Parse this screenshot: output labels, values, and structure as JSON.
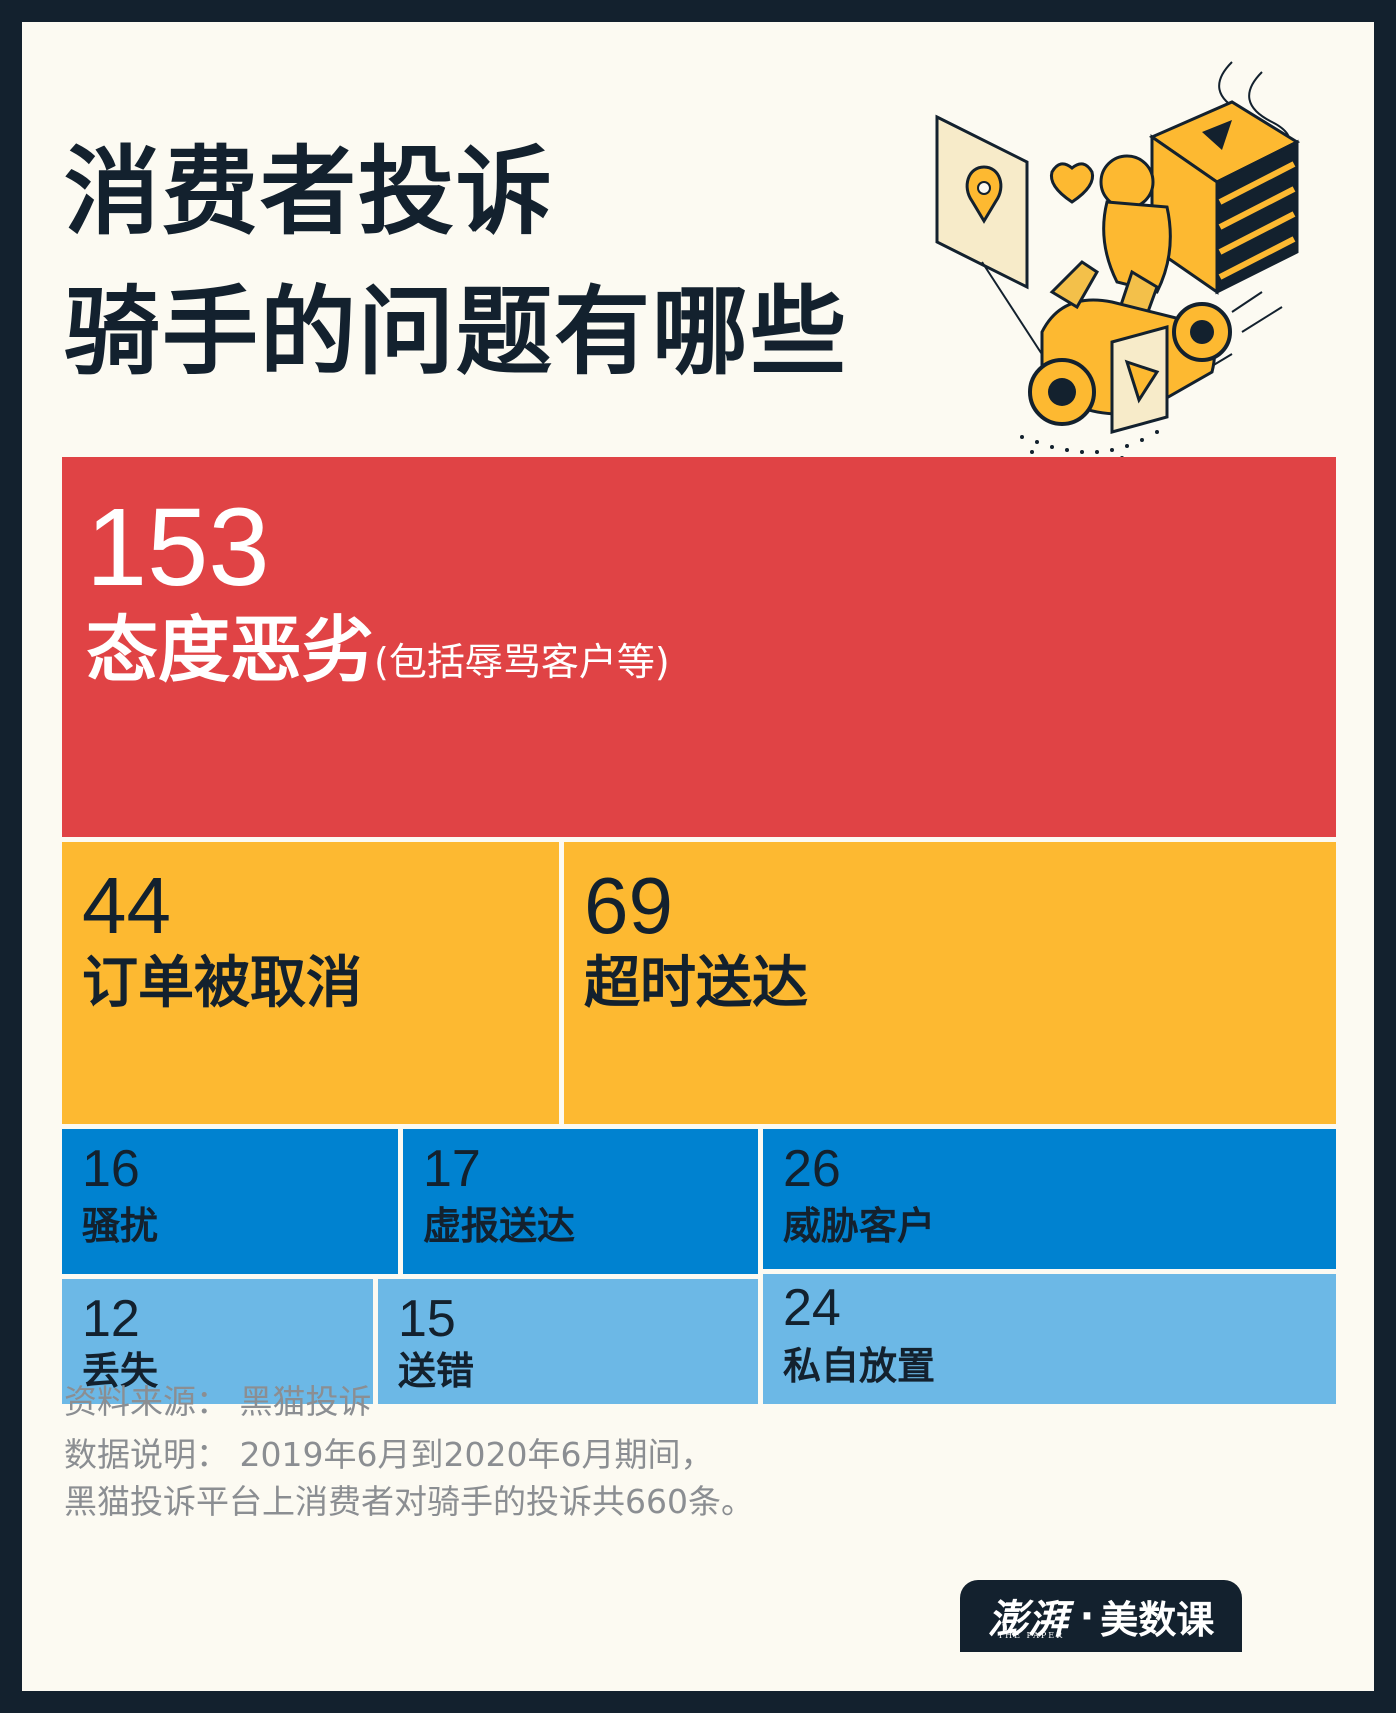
{
  "title": {
    "line1": "消费者投诉",
    "line2": "骑手的问题有哪些"
  },
  "chart_data": {
    "type": "treemap",
    "items": [
      {
        "label": "态度恶劣",
        "sublabel": "(包括辱骂客户等)",
        "value": 153,
        "color": "#e04345"
      },
      {
        "label": "订单被取消",
        "value": 44,
        "color": "#fdb931"
      },
      {
        "label": "超时送达",
        "value": 69,
        "color": "#fdb931"
      },
      {
        "label": "骚扰",
        "value": 16,
        "color": "#0082d0"
      },
      {
        "label": "虚报送达",
        "value": 17,
        "color": "#0082d0"
      },
      {
        "label": "威胁客户",
        "value": 26,
        "color": "#0082d0"
      },
      {
        "label": "丢失",
        "value": 12,
        "color": "#6cb8e6"
      },
      {
        "label": "送错",
        "value": 15,
        "color": "#6cb8e6"
      },
      {
        "label": "私自放置",
        "value": 24,
        "color": "#6cb8e6"
      }
    ]
  },
  "footer": {
    "source": "资料来源：  黑猫投诉",
    "note_line1": "数据说明：  2019年6月到2020年6月期间，",
    "note_line2": "黑猫投诉平台上消费者对骑手的投诉共660条。"
  },
  "logo": {
    "brand": "澎湃",
    "brand_sub": "THE PAPER",
    "dot": "·",
    "name": "美数课"
  },
  "colors": {
    "background": "#fcfaf2",
    "frame": "#13212e",
    "red": "#e04345",
    "yellow": "#fdb931",
    "blue_dark": "#0082d0",
    "blue_light": "#6cb8e6",
    "text_dark": "#13212e",
    "text_white": "#ffffff",
    "footer_text": "#8b8e92"
  },
  "illustration": "delivery-rider-scooter-icon"
}
